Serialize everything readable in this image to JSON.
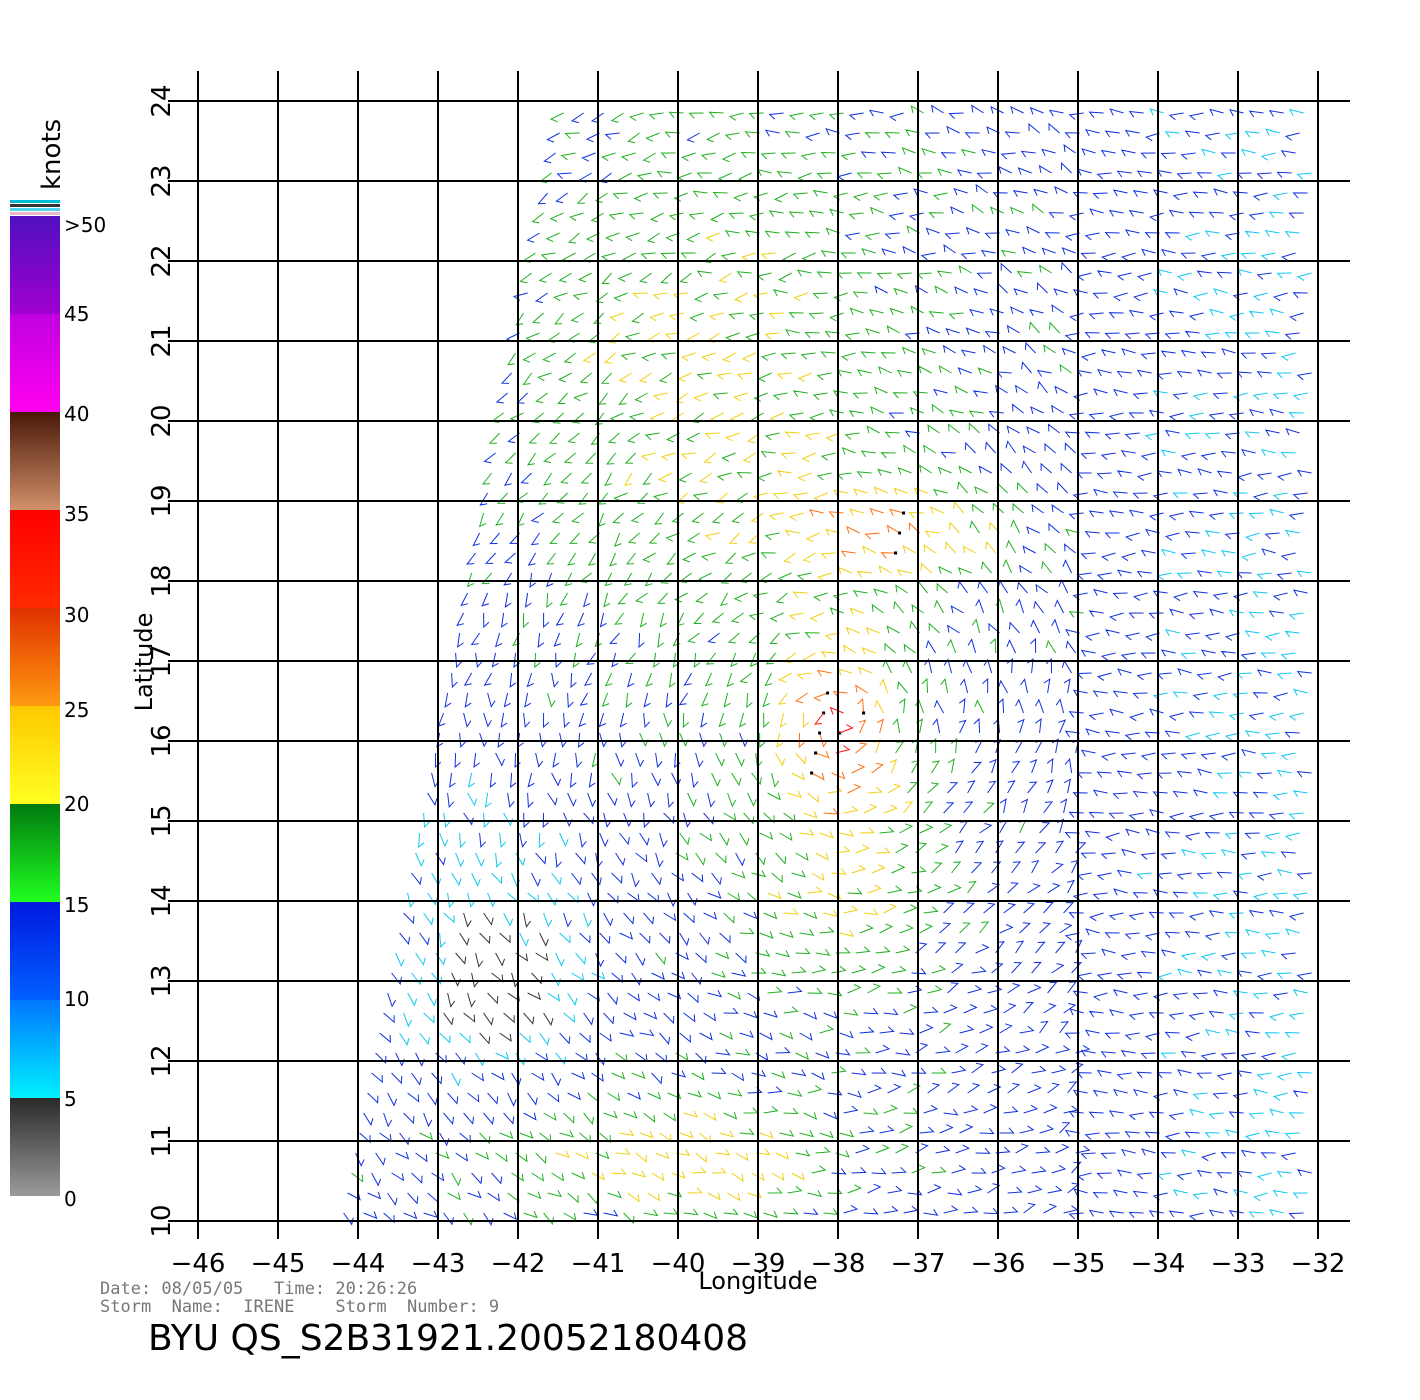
{
  "map": {
    "x_axis_label": "Longitude",
    "y_axis_label": "Latitude",
    "x_ticks": [
      "-46",
      "-45",
      "-44",
      "-43",
      "-42",
      "-41",
      "-40",
      "-39",
      "-38",
      "-37",
      "-36",
      "-35",
      "-34",
      "-33",
      "-32"
    ],
    "y_ticks": [
      "10",
      "11",
      "12",
      "13",
      "14",
      "15",
      "16",
      "17",
      "18",
      "19",
      "20",
      "21",
      "22",
      "23",
      "24"
    ],
    "xlim": [
      -46,
      -32
    ],
    "ylim": [
      10,
      24
    ]
  },
  "legend": {
    "unit": "knots",
    "labels": [
      ">50",
      "45",
      "40",
      "35",
      "30",
      "25",
      "20",
      "15",
      "10",
      "5",
      "0"
    ],
    "bands": [
      {
        "min": 0,
        "max": 5,
        "color_top": "#2a2a2a",
        "color_bottom": "#9a9a9a"
      },
      {
        "min": 5,
        "max": 10,
        "color_top": "#0077ff",
        "color_bottom": "#00f0ff"
      },
      {
        "min": 10,
        "max": 15,
        "color_top": "#0018e0",
        "color_bottom": "#0060ff"
      },
      {
        "min": 15,
        "max": 20,
        "color_top": "#007a10",
        "color_bottom": "#20ff20"
      },
      {
        "min": 20,
        "max": 25,
        "color_top": "#ffc800",
        "color_bottom": "#ffff20"
      },
      {
        "min": 25,
        "max": 30,
        "color_top": "#e03000",
        "color_bottom": "#ff9a10"
      },
      {
        "min": 30,
        "max": 35,
        "color_top": "#ff0000",
        "color_bottom": "#ff2a00"
      },
      {
        "min": 35,
        "max": 40,
        "color_top": "#4a1808",
        "color_bottom": "#d0906a"
      },
      {
        "min": 40,
        "max": 45,
        "color_top": "#c000e0",
        "color_bottom": "#ff00f0"
      },
      {
        "min": 45,
        "max": 50,
        "color_top": "#5010c0",
        "color_bottom": "#a000d0"
      }
    ]
  },
  "footer": {
    "date_line": "Date: 08/05/05   Time: 20:26:26",
    "storm_line": "Storm  Name:  IRENE    Storm  Number: 9",
    "product": "BYU  QS_S2B31921.20052180408"
  },
  "wind_field": {
    "swath_corners": [
      [
        -41.5,
        24
      ],
      [
        -32,
        24
      ],
      [
        -32,
        10
      ],
      [
        -44.3,
        10
      ]
    ],
    "calm_center": [
      -42.3,
      12.9
    ],
    "strong_core": [
      -38.0,
      16.2
    ],
    "strong_arc_center": [
      -37.2,
      18.6
    ]
  }
}
